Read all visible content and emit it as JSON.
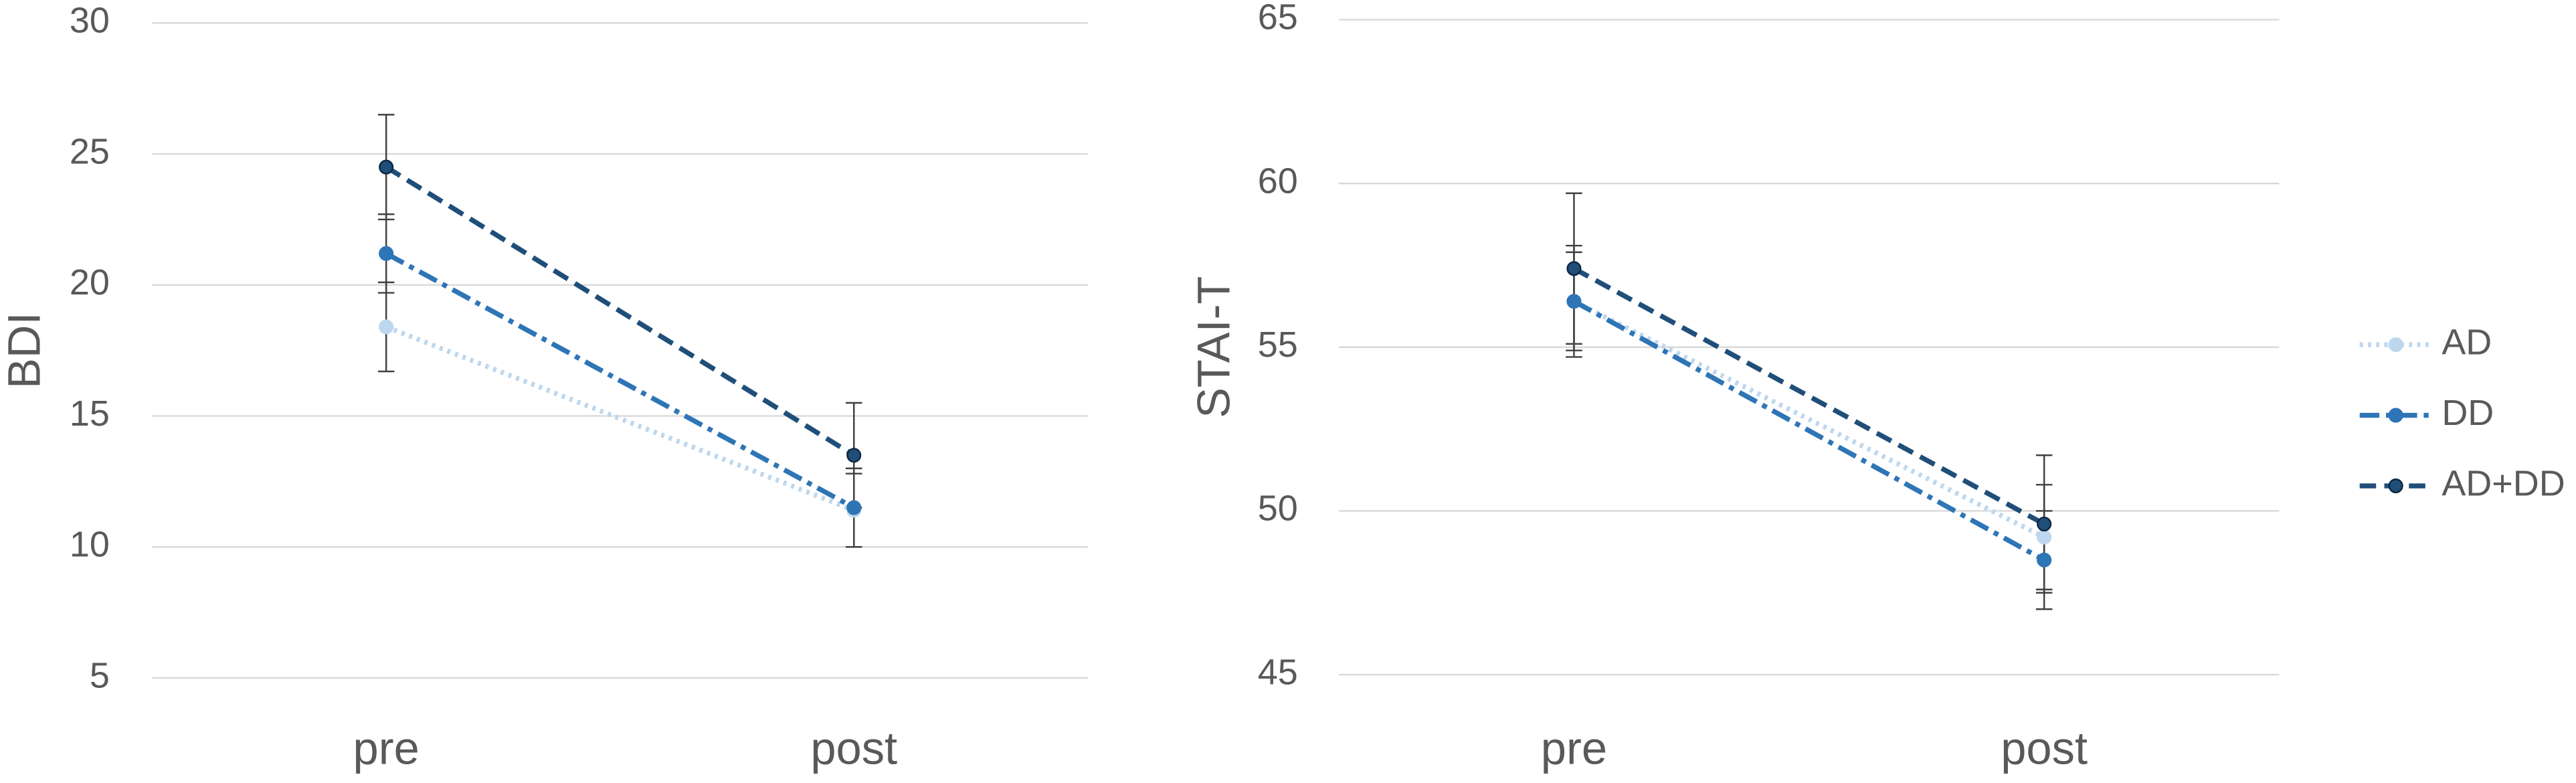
{
  "chart_data": [
    {
      "type": "line",
      "y_label": "BDI",
      "categories": [
        "pre",
        "post"
      ],
      "series": [
        {
          "name": "AD",
          "color": "#bdd7ee",
          "style": "dotted",
          "values": [
            18.4,
            11.4
          ],
          "errors": [
            1.7,
            1.4
          ]
        },
        {
          "name": "DD",
          "color": "#2e75b6",
          "style": "dashdot",
          "values": [
            21.2,
            11.5
          ],
          "errors": [
            1.5,
            1.5
          ]
        },
        {
          "name": "AD+DD",
          "color": "#1f4e79",
          "style": "dashed",
          "values": [
            24.5,
            13.5
          ],
          "errors": [
            2.0,
            2.0
          ]
        }
      ],
      "ylim": [
        5,
        30
      ],
      "yticks": [
        5,
        10,
        15,
        20,
        25,
        30
      ],
      "grid": true
    },
    {
      "type": "line",
      "y_label": "STAI-T",
      "categories": [
        "pre",
        "post"
      ],
      "series": [
        {
          "name": "AD",
          "color": "#bdd7ee",
          "style": "dotted",
          "values": [
            56.4,
            49.2
          ],
          "errors": [
            1.5,
            1.6
          ]
        },
        {
          "name": "DD",
          "color": "#2e75b6",
          "style": "dashdot",
          "values": [
            56.4,
            48.5
          ],
          "errors": [
            1.7,
            1.5
          ]
        },
        {
          "name": "AD+DD",
          "color": "#1f4e79",
          "style": "dashed",
          "values": [
            57.4,
            49.6
          ],
          "errors": [
            2.3,
            2.1
          ]
        }
      ],
      "ylim": [
        45,
        65
      ],
      "yticks": [
        45,
        50,
        55,
        60,
        65
      ],
      "grid": true,
      "legend": "right"
    }
  ]
}
